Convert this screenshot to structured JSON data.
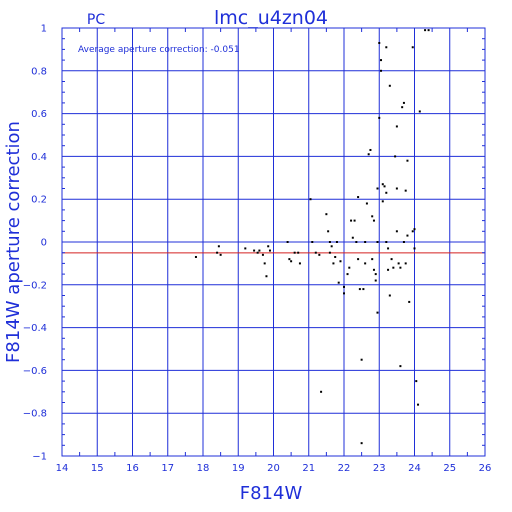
{
  "chart_data": {
    "type": "scatter",
    "title": "lmc_u4zn04",
    "corner_label": "PC",
    "annotation": "Average aperture correction: -0.051",
    "xlabel": "F814W",
    "ylabel": "F814W aperture correction",
    "xlim": [
      14,
      26
    ],
    "ylim": [
      -1,
      1
    ],
    "xticks": [
      14,
      15,
      16,
      17,
      18,
      19,
      20,
      21,
      22,
      23,
      24,
      25,
      26
    ],
    "yticks": [
      -1,
      -0.8,
      -0.6,
      -0.4,
      -0.2,
      0,
      0.2,
      0.4,
      0.6,
      0.8,
      1
    ],
    "ytick_labels": [
      "−1",
      "−0.8",
      "−0.6",
      "−0.4",
      "−0.2",
      "0",
      "0.2",
      "0.4",
      "0.6",
      "0.8",
      "1"
    ],
    "grid": true,
    "reference_lines": [
      {
        "y": 0,
        "color": "#1f2fd8"
      },
      {
        "y": -0.051,
        "color": "#d42020"
      }
    ],
    "colors": {
      "axes": "#1f2fd8",
      "points": "#000000",
      "average": "#d42020"
    },
    "points": [
      [
        17.8,
        -0.07
      ],
      [
        18.4,
        -0.05
      ],
      [
        18.45,
        -0.02
      ],
      [
        18.5,
        -0.06
      ],
      [
        19.2,
        -0.03
      ],
      [
        19.45,
        -0.04
      ],
      [
        19.55,
        -0.05
      ],
      [
        19.6,
        -0.04
      ],
      [
        19.7,
        -0.06
      ],
      [
        19.75,
        -0.1
      ],
      [
        19.8,
        -0.16
      ],
      [
        19.85,
        -0.02
      ],
      [
        19.9,
        -0.04
      ],
      [
        20.4,
        0.0
      ],
      [
        20.45,
        -0.08
      ],
      [
        20.5,
        -0.09
      ],
      [
        20.6,
        -0.05
      ],
      [
        20.7,
        -0.05
      ],
      [
        20.75,
        -0.1
      ],
      [
        21.05,
        0.2
      ],
      [
        21.1,
        0.0
      ],
      [
        21.2,
        -0.05
      ],
      [
        21.3,
        -0.06
      ],
      [
        21.35,
        -0.7
      ],
      [
        21.5,
        0.13
      ],
      [
        21.55,
        0.05
      ],
      [
        21.6,
        0.0
      ],
      [
        21.6,
        -0.05
      ],
      [
        21.65,
        -0.02
      ],
      [
        21.7,
        -0.1
      ],
      [
        21.75,
        -0.07
      ],
      [
        21.8,
        0.0
      ],
      [
        21.85,
        -0.19
      ],
      [
        21.9,
        -0.09
      ],
      [
        22.0,
        -0.21
      ],
      [
        22.0,
        -0.24
      ],
      [
        22.1,
        -0.15
      ],
      [
        22.15,
        -0.12
      ],
      [
        22.2,
        0.1
      ],
      [
        22.25,
        0.02
      ],
      [
        22.3,
        0.1
      ],
      [
        22.35,
        0.0
      ],
      [
        22.4,
        0.21
      ],
      [
        22.4,
        -0.08
      ],
      [
        22.45,
        -0.22
      ],
      [
        22.5,
        -0.94
      ],
      [
        22.5,
        -0.55
      ],
      [
        22.55,
        -0.22
      ],
      [
        22.6,
        0.0
      ],
      [
        22.6,
        -0.1
      ],
      [
        22.65,
        0.18
      ],
      [
        22.7,
        0.41
      ],
      [
        22.75,
        0.43
      ],
      [
        22.8,
        0.12
      ],
      [
        22.8,
        -0.08
      ],
      [
        22.85,
        0.1
      ],
      [
        22.85,
        -0.13
      ],
      [
        22.9,
        -0.15
      ],
      [
        22.9,
        -0.18
      ],
      [
        22.95,
        0.25
      ],
      [
        22.95,
        0.0
      ],
      [
        22.95,
        -0.33
      ],
      [
        23.0,
        0.58
      ],
      [
        23.0,
        0.93
      ],
      [
        23.05,
        0.85
      ],
      [
        23.05,
        0.8
      ],
      [
        23.1,
        0.27
      ],
      [
        23.1,
        0.19
      ],
      [
        23.15,
        0.26
      ],
      [
        23.2,
        0.91
      ],
      [
        23.2,
        0.23
      ],
      [
        23.2,
        0.0
      ],
      [
        23.25,
        -0.03
      ],
      [
        23.25,
        -0.13
      ],
      [
        23.3,
        -0.25
      ],
      [
        23.3,
        0.73
      ],
      [
        23.35,
        -0.08
      ],
      [
        23.4,
        -0.12
      ],
      [
        23.45,
        0.4
      ],
      [
        23.5,
        0.54
      ],
      [
        23.5,
        0.25
      ],
      [
        23.5,
        0.05
      ],
      [
        23.55,
        -0.1
      ],
      [
        23.6,
        -0.12
      ],
      [
        23.6,
        -0.58
      ],
      [
        23.65,
        0.63
      ],
      [
        23.7,
        0.65
      ],
      [
        23.7,
        0.0
      ],
      [
        23.75,
        0.24
      ],
      [
        23.75,
        -0.1
      ],
      [
        23.8,
        0.38
      ],
      [
        23.8,
        0.03
      ],
      [
        23.85,
        -0.28
      ],
      [
        23.95,
        0.91
      ],
      [
        23.95,
        0.05
      ],
      [
        24.0,
        0.06
      ],
      [
        24.0,
        -0.03
      ],
      [
        24.05,
        -0.65
      ],
      [
        24.1,
        -0.76
      ],
      [
        24.15,
        0.61
      ],
      [
        24.3,
        0.99
      ],
      [
        24.4,
        0.99
      ]
    ]
  }
}
